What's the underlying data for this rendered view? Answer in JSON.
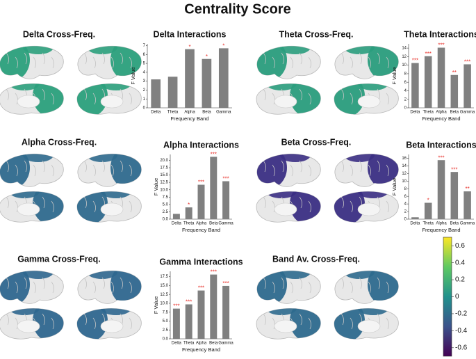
{
  "title": "Centrality Score",
  "brain_panels": [
    {
      "title": "Delta Cross-Freq."
    },
    {
      "title": "Theta Cross-Freq."
    },
    {
      "title": "Alpha Cross-Freq."
    },
    {
      "title": "Beta Cross-Freq."
    },
    {
      "title": "Gamma Cross-Freq."
    },
    {
      "title": "Band Av. Cross-Freq."
    }
  ],
  "colorbar": {
    "lim": [
      -0.7,
      0.7
    ],
    "ticks": [
      0.6,
      0.4,
      0.2,
      0,
      -0.2,
      -0.4,
      -0.6
    ]
  },
  "chart_data": [
    {
      "type": "bar",
      "title": "Delta Interactions",
      "xlabel": "Frequency Band",
      "ylabel": "F Value",
      "color": "#808080",
      "categories": [
        "Delta",
        "Theta",
        "Alpha",
        "Beta",
        "Gamma"
      ],
      "values": [
        3.2,
        3.5,
        6.6,
        5.5,
        6.7
      ],
      "significance": [
        null,
        null,
        "*",
        "*",
        "*"
      ],
      "ylim": [
        0,
        7.2
      ],
      "yticks": [
        0,
        1,
        2,
        3,
        4,
        5,
        6,
        7
      ]
    },
    {
      "type": "bar",
      "title": "Theta Interactions",
      "xlabel": "Frequency Band",
      "ylabel": "F Value",
      "color": "#808080",
      "categories": [
        "Delta",
        "Theta",
        "Alpha",
        "Beta",
        "Gamma"
      ],
      "values": [
        10.5,
        12.1,
        14.1,
        7.7,
        10.2
      ],
      "significance": [
        "***",
        "***",
        "***",
        "**",
        "***"
      ],
      "ylim": [
        0,
        15
      ],
      "yticks": [
        0,
        2,
        4,
        6,
        8,
        10,
        12,
        14
      ]
    },
    {
      "type": "bar",
      "title": "Alpha Interactions",
      "xlabel": "Frequency Band",
      "ylabel": "F Value",
      "color": "#808080",
      "categories": [
        "Delta",
        "Theta",
        "Alpha",
        "Beta",
        "Gamma"
      ],
      "values": [
        1.8,
        4.0,
        11.7,
        21.2,
        12.9
      ],
      "significance": [
        null,
        "*",
        "***",
        "***",
        "***"
      ],
      "ylim": [
        0,
        22
      ],
      "yticks": [
        {
          "value": 0,
          "label": "0.0"
        },
        2.5,
        {
          "value": 5,
          "label": "5.0"
        },
        7.5,
        {
          "value": 10,
          "label": "10.0"
        },
        12.5,
        {
          "value": 15,
          "label": "15.0"
        },
        17.5,
        {
          "value": 20,
          "label": "20.0"
        }
      ]
    },
    {
      "type": "bar",
      "title": "Beta Interactions",
      "xlabel": "Frequency Band",
      "ylabel": "F Value",
      "color": "#808080",
      "categories": [
        "Delta",
        "Theta",
        "Alpha",
        "Beta",
        "Gamma"
      ],
      "values": [
        0.5,
        4.3,
        15.5,
        12.4,
        7.3
      ],
      "significance": [
        null,
        "*",
        "***",
        "***",
        "**"
      ],
      "ylim": [
        0,
        17
      ],
      "yticks": [
        0,
        2,
        4,
        6,
        8,
        10,
        12,
        14,
        16
      ]
    },
    {
      "type": "bar",
      "title": "Gamma Interactions",
      "xlabel": "Frequency Band",
      "ylabel": "F Value",
      "color": "#808080",
      "categories": [
        "Delta",
        "Theta",
        "Alpha",
        "Beta",
        "Gamma"
      ],
      "values": [
        8.5,
        9.7,
        13.6,
        18.1,
        14.9
      ],
      "significance": [
        "***",
        "***",
        "***",
        "***",
        "***"
      ],
      "ylim": [
        0,
        19
      ],
      "yticks": [
        {
          "value": 0,
          "label": "0.0"
        },
        2.5,
        {
          "value": 5,
          "label": "5.0"
        },
        7.5,
        {
          "value": 10,
          "label": "10.0"
        },
        12.5,
        {
          "value": 15,
          "label": "15.0"
        },
        17.5
      ]
    }
  ]
}
